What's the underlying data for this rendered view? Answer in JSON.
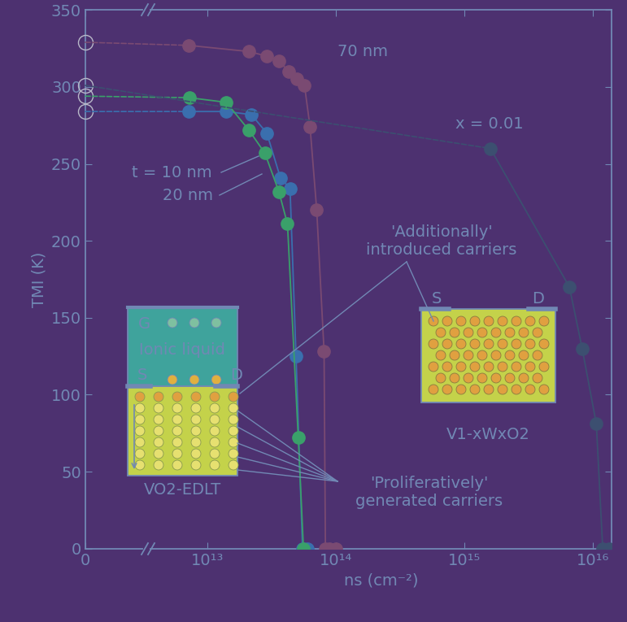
{
  "chart_data": {
    "type": "line",
    "x_label": "ns (cm⁻²)",
    "y_label": "TMI (K)",
    "log": "x",
    "xlim": [
      3600000000000.0,
      1.4e+16
    ],
    "xticks": [
      {
        "value": 10000000000000.0,
        "label": "10¹³"
      },
      {
        "value": 100000000000000.0,
        "label": "10¹⁴"
      },
      {
        "value": 1000000000000000.0,
        "label": "10¹⁵"
      },
      {
        "value": 1e+16,
        "label": "10¹⁶"
      }
    ],
    "zero_panel": {
      "xlim": [
        0,
        1
      ],
      "xticks": [
        0
      ]
    },
    "ylim": [
      0,
      350
    ],
    "yticks": [
      0,
      50,
      100,
      150,
      200,
      250,
      300,
      350
    ],
    "marker": "o",
    "series": [
      {
        "name": "70 nm",
        "color": "#7a4a72",
        "zero_value": 329,
        "x": [
          7100000000000.0,
          21000000000000.0,
          29000000000000.0,
          36000000000000.0,
          43000000000000.0,
          50000000000000.0,
          57000000000000.0,
          63000000000000.0,
          71000000000000.0,
          81000000000000.0,
          83000000000000.0,
          89000000000000.0,
          100000000000000.0
        ],
        "values": [
          327,
          323,
          320,
          317,
          310,
          305,
          301,
          274,
          220,
          128,
          0,
          0,
          0
        ]
      },
      {
        "name": "t = 10 nm",
        "color": "#3a6fae",
        "zero_value": 284,
        "x": [
          7100000000000.0,
          14000000000000.0,
          22000000000000.0,
          29000000000000.0,
          37000000000000.0,
          44000000000000.0,
          49000000000000.0,
          55000000000000.0,
          60000000000000.0
        ],
        "values": [
          284,
          284,
          282,
          270,
          241,
          234,
          125,
          0,
          0
        ]
      },
      {
        "name": "20 nm",
        "color": "#3aa06a",
        "zero_value": 294,
        "x": [
          7200000000000.0,
          14000000000000.0,
          21000000000000.0,
          28000000000000.0,
          36000000000000.0,
          42000000000000.0,
          51000000000000.0,
          56000000000000.0
        ],
        "values": [
          293,
          290,
          272,
          257,
          232,
          211,
          72,
          0
        ]
      },
      {
        "name": "x = 0.01",
        "color": "#3c4f70",
        "zero_value": 301,
        "x": [
          1600000000000000.0,
          6600000000000000.0,
          8300000000000000.0,
          1.07e+16,
          1.2e+16,
          1.35e+16
        ],
        "values": [
          260,
          170,
          130,
          81,
          0,
          0
        ]
      }
    ],
    "annotations": {
      "additional": "'Additionally'\nintroduced carriers",
      "proliferative": "'Proliferatively'\ngenerated carriers",
      "edlt_label": "VO2-EDLT",
      "doped_label": "V1-xWxO2",
      "gate": "G",
      "source": "S",
      "drain": "D",
      "liquid": "Ionic liquid"
    }
  }
}
